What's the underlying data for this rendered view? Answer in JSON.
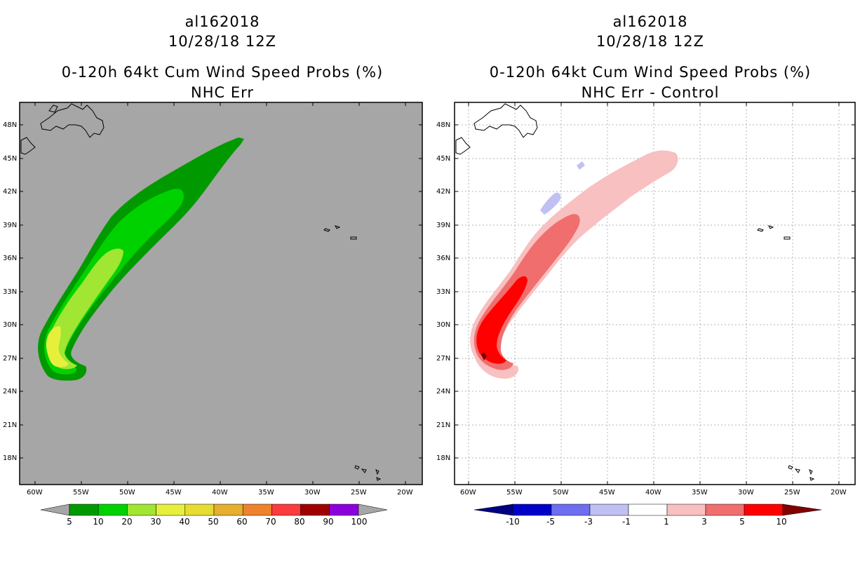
{
  "panels": [
    {
      "id": "left",
      "storm_id": "al162018",
      "datetime": "10/28/18 12Z",
      "product": "0-120h 64kt Cum Wind Speed Probs (%)",
      "subtitle": "NHC Err",
      "background": "#a6a6a6",
      "lat_labels": [
        "48N",
        "45N",
        "42N",
        "39N",
        "36N",
        "33N",
        "30N",
        "27N",
        "24N",
        "21N",
        "18N"
      ],
      "lon_labels": [
        "60W",
        "55W",
        "50W",
        "45W",
        "40W",
        "35W",
        "30W",
        "25W",
        "20W"
      ],
      "colorbar": {
        "labels": [
          "5",
          "10",
          "20",
          "30",
          "40",
          "50",
          "60",
          "70",
          "80",
          "90",
          "100"
        ],
        "colors": [
          "#009a00",
          "#00d200",
          "#a0e632",
          "#e6f03c",
          "#e6dc32",
          "#e6af2d",
          "#f0822d",
          "#fa3c3c",
          "#a00000",
          "#8c00dc"
        ],
        "under_color": "#a6a6a6",
        "over_color": "#a6a6a6"
      }
    },
    {
      "id": "right",
      "storm_id": "al162018",
      "datetime": "10/28/18 12Z",
      "product": "0-120h 64kt Cum Wind Speed Probs (%)",
      "subtitle": "NHC Err - Control",
      "background": "#ffffff",
      "lat_labels": [
        "48N",
        "45N",
        "42N",
        "39N",
        "36N",
        "33N",
        "30N",
        "27N",
        "24N",
        "21N",
        "18N"
      ],
      "lon_labels": [
        "60W",
        "55W",
        "50W",
        "45W",
        "40W",
        "35W",
        "30W",
        "25W",
        "20W"
      ],
      "colorbar": {
        "labels": [
          "-10",
          "-5",
          "-3",
          "-1",
          "1",
          "3",
          "5",
          "10"
        ],
        "colors": [
          "#0000c8",
          "#6e6ef0",
          "#c0c0f5",
          "#ffffff",
          "#f8c0c0",
          "#f06e6e",
          "#ff0000"
        ],
        "under_color": "#000082",
        "over_color": "#820000"
      }
    }
  ]
}
